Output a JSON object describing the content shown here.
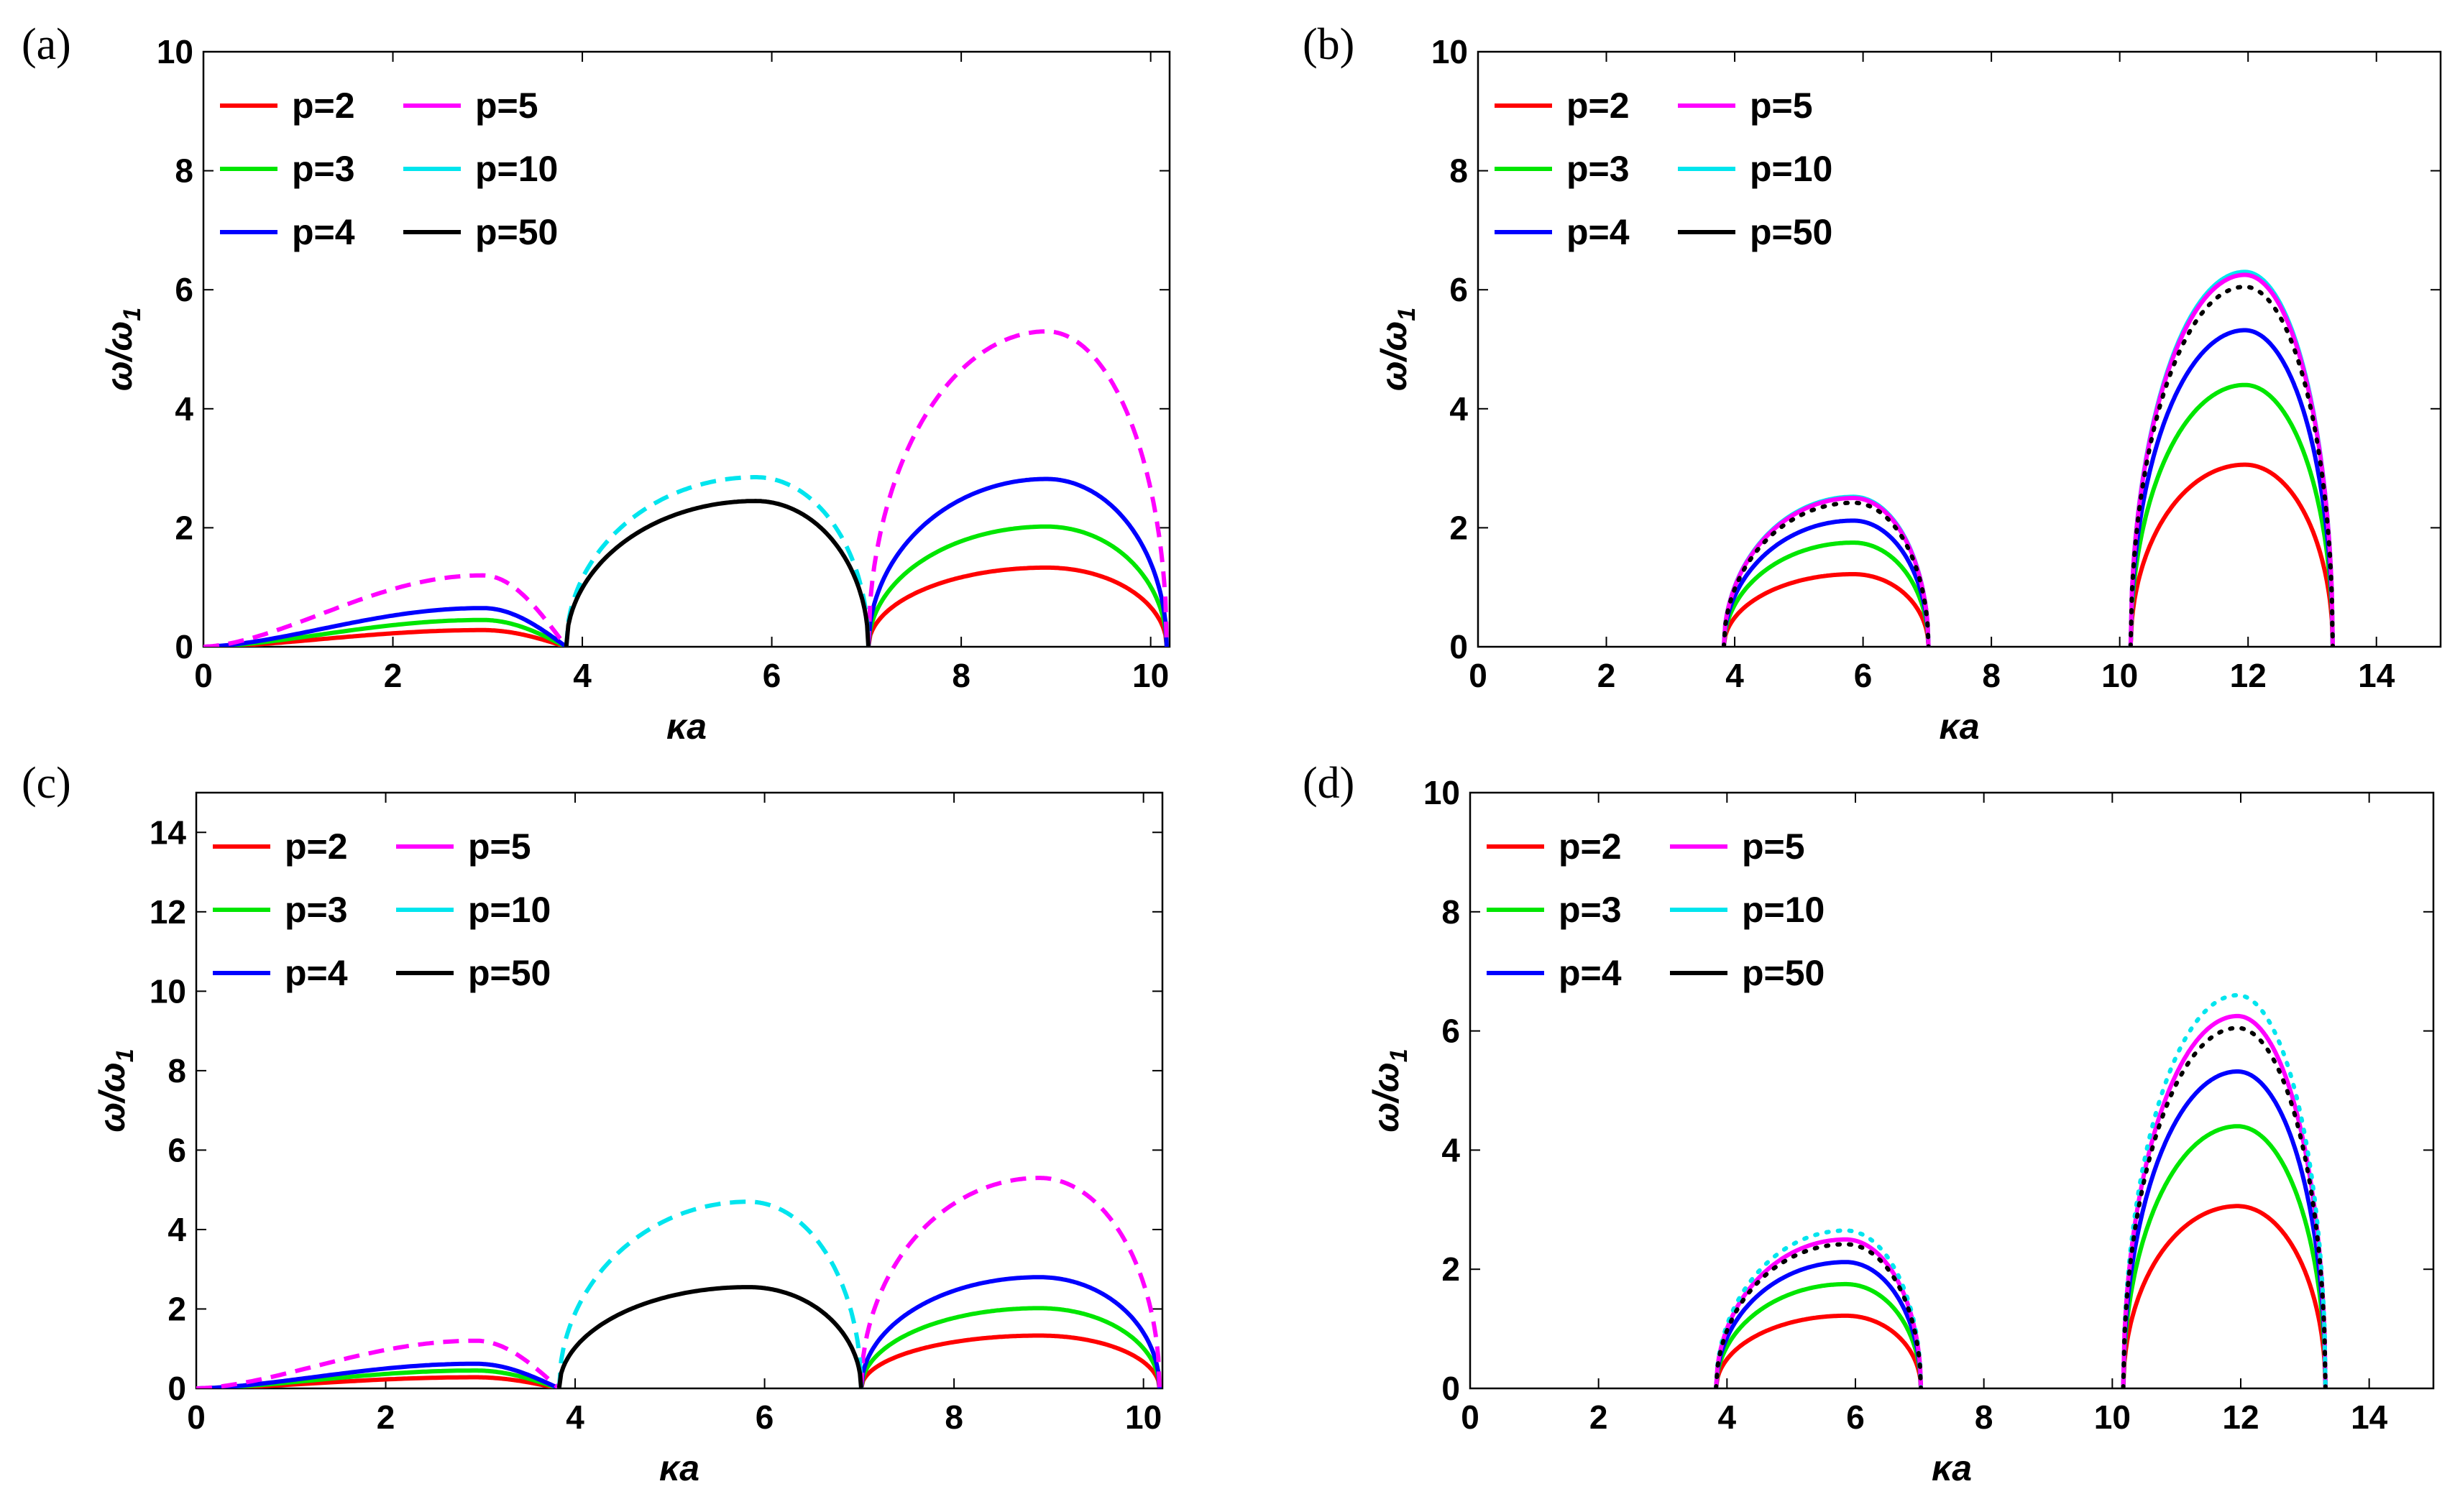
{
  "chart_data": [
    {
      "id": "a",
      "panel_label": "(a)",
      "type": "line",
      "xlabel": "κa",
      "ylabel_main": "ω/ω",
      "ylabel_sub": "1",
      "xlim": [
        0,
        10.2
      ],
      "ylim": [
        0,
        10
      ],
      "xticks": [
        0,
        2,
        4,
        6,
        8,
        10
      ],
      "yticks": [
        0,
        2,
        4,
        6,
        8,
        10
      ],
      "legend": [
        {
          "label": "p=2",
          "color": "#ff0000"
        },
        {
          "label": "p=3",
          "color": "#00e600"
        },
        {
          "label": "p=4",
          "color": "#0000ff"
        },
        {
          "label": "p=5",
          "color": "#ff00ff"
        },
        {
          "label": "p=10",
          "color": "#00e5ee"
        },
        {
          "label": "p=50",
          "color": "#000000"
        }
      ],
      "series": [
        {
          "name": "p=2",
          "color": "#ff0000",
          "style": "solid",
          "arches": [
            {
              "x0": 0,
              "x1": 3.83,
              "peak_x": 2.95,
              "peak_y": 0.28,
              "shape": "ramp"
            },
            {
              "x0": 7.02,
              "x1": 10.17,
              "peak_x": 8.9,
              "peak_y": 1.33
            }
          ]
        },
        {
          "name": "p=3",
          "color": "#00e600",
          "style": "solid",
          "arches": [
            {
              "x0": 0,
              "x1": 3.83,
              "peak_x": 2.95,
              "peak_y": 0.45,
              "shape": "ramp"
            },
            {
              "x0": 7.02,
              "x1": 10.17,
              "peak_x": 8.9,
              "peak_y": 2.02
            }
          ]
        },
        {
          "name": "p=4",
          "color": "#0000ff",
          "style": "solid",
          "arches": [
            {
              "x0": 0,
              "x1": 3.83,
              "peak_x": 2.95,
              "peak_y": 0.65,
              "shape": "ramp"
            },
            {
              "x0": 7.02,
              "x1": 10.17,
              "peak_x": 8.9,
              "peak_y": 2.82
            }
          ]
        },
        {
          "name": "p=5",
          "color": "#ff00ff",
          "style": "dashed",
          "arches": [
            {
              "x0": 0,
              "x1": 3.83,
              "peak_x": 2.95,
              "peak_y": 1.2,
              "shape": "ramp"
            },
            {
              "x0": 7.02,
              "x1": 10.17,
              "peak_x": 8.9,
              "peak_y": 5.3
            }
          ]
        },
        {
          "name": "p=10",
          "color": "#00e5ee",
          "style": "dashed",
          "arches": [
            {
              "x0": 3.83,
              "x1": 7.02,
              "peak_x": 5.83,
              "peak_y": 2.85
            }
          ]
        },
        {
          "name": "p=50",
          "color": "#000000",
          "style": "solid",
          "arches": [
            {
              "x0": 3.83,
              "x1": 7.02,
              "peak_x": 5.83,
              "peak_y": 2.45
            }
          ]
        }
      ]
    },
    {
      "id": "b",
      "panel_label": "(b)",
      "type": "line",
      "xlabel": "κa",
      "ylabel_main": "ω/ω",
      "ylabel_sub": "1",
      "xlim": [
        0,
        15
      ],
      "ylim": [
        0,
        10
      ],
      "xticks": [
        0,
        2,
        4,
        6,
        8,
        10,
        12,
        14
      ],
      "yticks": [
        0,
        2,
        4,
        6,
        8,
        10
      ],
      "legend": [
        {
          "label": "p=2",
          "color": "#ff0000"
        },
        {
          "label": "p=3",
          "color": "#00e600"
        },
        {
          "label": "p=4",
          "color": "#0000ff"
        },
        {
          "label": "p=5",
          "color": "#ff00ff"
        },
        {
          "label": "p=10",
          "color": "#00e5ee"
        },
        {
          "label": "p=50",
          "color": "#000000"
        }
      ],
      "series": [
        {
          "name": "p=2",
          "color": "#ff0000",
          "style": "solid",
          "arches": [
            {
              "x0": 3.83,
              "x1": 7.02,
              "peak_x": 5.85,
              "peak_y": 1.22
            },
            {
              "x0": 10.17,
              "x1": 13.32,
              "peak_x": 11.95,
              "peak_y": 3.06
            }
          ]
        },
        {
          "name": "p=3",
          "color": "#00e600",
          "style": "solid",
          "arches": [
            {
              "x0": 3.83,
              "x1": 7.02,
              "peak_x": 5.85,
              "peak_y": 1.75
            },
            {
              "x0": 10.17,
              "x1": 13.32,
              "peak_x": 11.95,
              "peak_y": 4.4
            }
          ]
        },
        {
          "name": "p=4",
          "color": "#0000ff",
          "style": "solid",
          "arches": [
            {
              "x0": 3.83,
              "x1": 7.02,
              "peak_x": 5.85,
              "peak_y": 2.12
            },
            {
              "x0": 10.17,
              "x1": 13.32,
              "peak_x": 11.95,
              "peak_y": 5.32
            }
          ]
        },
        {
          "name": "p=10",
          "color": "#00e5ee",
          "style": "solid",
          "arches": [
            {
              "x0": 3.83,
              "x1": 7.02,
              "peak_x": 5.85,
              "peak_y": 2.52
            },
            {
              "x0": 10.17,
              "x1": 13.32,
              "peak_x": 11.95,
              "peak_y": 6.3
            }
          ]
        },
        {
          "name": "p=5",
          "color": "#ff00ff",
          "style": "solid",
          "arches": [
            {
              "x0": 3.83,
              "x1": 7.02,
              "peak_x": 5.85,
              "peak_y": 2.5
            },
            {
              "x0": 10.17,
              "x1": 13.32,
              "peak_x": 11.95,
              "peak_y": 6.25
            }
          ]
        },
        {
          "name": "p=50",
          "color": "#000000",
          "style": "dotted",
          "arches": [
            {
              "x0": 3.83,
              "x1": 7.02,
              "peak_x": 5.85,
              "peak_y": 2.42
            },
            {
              "x0": 10.17,
              "x1": 13.32,
              "peak_x": 11.95,
              "peak_y": 6.05
            }
          ]
        }
      ]
    },
    {
      "id": "c",
      "panel_label": "(c)",
      "type": "line",
      "xlabel": "κa",
      "ylabel_main": "ω/ω",
      "ylabel_sub": "1",
      "xlim": [
        0,
        10.2
      ],
      "ylim": [
        0,
        15
      ],
      "xticks": [
        0,
        2,
        4,
        6,
        8,
        10
      ],
      "yticks": [
        0,
        2,
        4,
        6,
        8,
        10,
        12,
        14
      ],
      "legend": [
        {
          "label": "p=2",
          "color": "#ff0000"
        },
        {
          "label": "p=3",
          "color": "#00e600"
        },
        {
          "label": "p=4",
          "color": "#0000ff"
        },
        {
          "label": "p=5",
          "color": "#ff00ff"
        },
        {
          "label": "p=10",
          "color": "#00e5ee"
        },
        {
          "label": "p=50",
          "color": "#000000"
        }
      ],
      "series": [
        {
          "name": "p=2",
          "color": "#ff0000",
          "style": "solid",
          "arches": [
            {
              "x0": 0,
              "x1": 3.83,
              "peak_x": 2.95,
              "peak_y": 0.28,
              "shape": "ramp"
            },
            {
              "x0": 7.02,
              "x1": 10.17,
              "peak_x": 8.9,
              "peak_y": 1.33
            }
          ]
        },
        {
          "name": "p=3",
          "color": "#00e600",
          "style": "solid",
          "arches": [
            {
              "x0": 0,
              "x1": 3.83,
              "peak_x": 2.95,
              "peak_y": 0.45,
              "shape": "ramp"
            },
            {
              "x0": 7.02,
              "x1": 10.17,
              "peak_x": 8.9,
              "peak_y": 2.02
            }
          ]
        },
        {
          "name": "p=4",
          "color": "#0000ff",
          "style": "solid",
          "arches": [
            {
              "x0": 0,
              "x1": 3.83,
              "peak_x": 2.95,
              "peak_y": 0.62,
              "shape": "ramp"
            },
            {
              "x0": 7.02,
              "x1": 10.17,
              "peak_x": 8.9,
              "peak_y": 2.8
            }
          ]
        },
        {
          "name": "p=5",
          "color": "#ff00ff",
          "style": "dashed",
          "arches": [
            {
              "x0": 0,
              "x1": 3.83,
              "peak_x": 2.95,
              "peak_y": 1.2,
              "shape": "ramp"
            },
            {
              "x0": 7.02,
              "x1": 10.17,
              "peak_x": 8.9,
              "peak_y": 5.3
            }
          ]
        },
        {
          "name": "p=10",
          "color": "#00e5ee",
          "style": "dashed",
          "arches": [
            {
              "x0": 3.83,
              "x1": 7.02,
              "peak_x": 5.83,
              "peak_y": 4.7
            }
          ]
        },
        {
          "name": "p=50",
          "color": "#000000",
          "style": "solid",
          "arches": [
            {
              "x0": 3.83,
              "x1": 7.02,
              "peak_x": 5.83,
              "peak_y": 2.55
            }
          ]
        }
      ]
    },
    {
      "id": "d",
      "panel_label": "(d)",
      "type": "line",
      "xlabel": "κa",
      "ylabel_main": "ω/ω",
      "ylabel_sub": "1",
      "xlim": [
        0,
        15
      ],
      "ylim": [
        0,
        10
      ],
      "xticks": [
        0,
        2,
        4,
        6,
        8,
        10,
        12,
        14
      ],
      "yticks": [
        0,
        2,
        4,
        6,
        8,
        10
      ],
      "legend": [
        {
          "label": "p=2",
          "color": "#ff0000"
        },
        {
          "label": "p=3",
          "color": "#00e600"
        },
        {
          "label": "p=4",
          "color": "#0000ff"
        },
        {
          "label": "p=5",
          "color": "#ff00ff"
        },
        {
          "label": "p=10",
          "color": "#00e5ee"
        },
        {
          "label": "p=50",
          "color": "#000000"
        }
      ],
      "series": [
        {
          "name": "p=2",
          "color": "#ff0000",
          "style": "solid",
          "arches": [
            {
              "x0": 3.83,
              "x1": 7.02,
              "peak_x": 5.85,
              "peak_y": 1.22
            },
            {
              "x0": 10.17,
              "x1": 13.32,
              "peak_x": 11.95,
              "peak_y": 3.06
            }
          ]
        },
        {
          "name": "p=3",
          "color": "#00e600",
          "style": "solid",
          "arches": [
            {
              "x0": 3.83,
              "x1": 7.02,
              "peak_x": 5.85,
              "peak_y": 1.75
            },
            {
              "x0": 10.17,
              "x1": 13.32,
              "peak_x": 11.95,
              "peak_y": 4.4
            }
          ]
        },
        {
          "name": "p=4",
          "color": "#0000ff",
          "style": "solid",
          "arches": [
            {
              "x0": 3.83,
              "x1": 7.02,
              "peak_x": 5.85,
              "peak_y": 2.12
            },
            {
              "x0": 10.17,
              "x1": 13.32,
              "peak_x": 11.95,
              "peak_y": 5.32
            }
          ]
        },
        {
          "name": "p=5",
          "color": "#ff00ff",
          "style": "solid",
          "arches": [
            {
              "x0": 3.83,
              "x1": 7.02,
              "peak_x": 5.85,
              "peak_y": 2.5
            },
            {
              "x0": 10.17,
              "x1": 13.32,
              "peak_x": 11.95,
              "peak_y": 6.25
            }
          ]
        },
        {
          "name": "p=10",
          "color": "#00e5ee",
          "style": "dotted",
          "arches": [
            {
              "x0": 3.83,
              "x1": 7.02,
              "peak_x": 5.85,
              "peak_y": 2.65
            },
            {
              "x0": 10.17,
              "x1": 13.32,
              "peak_x": 11.95,
              "peak_y": 6.6
            }
          ]
        },
        {
          "name": "p=50",
          "color": "#000000",
          "style": "dotted",
          "arches": [
            {
              "x0": 3.83,
              "x1": 7.02,
              "peak_x": 5.85,
              "peak_y": 2.42
            },
            {
              "x0": 10.17,
              "x1": 13.32,
              "peak_x": 11.95,
              "peak_y": 6.05
            }
          ]
        }
      ]
    }
  ]
}
